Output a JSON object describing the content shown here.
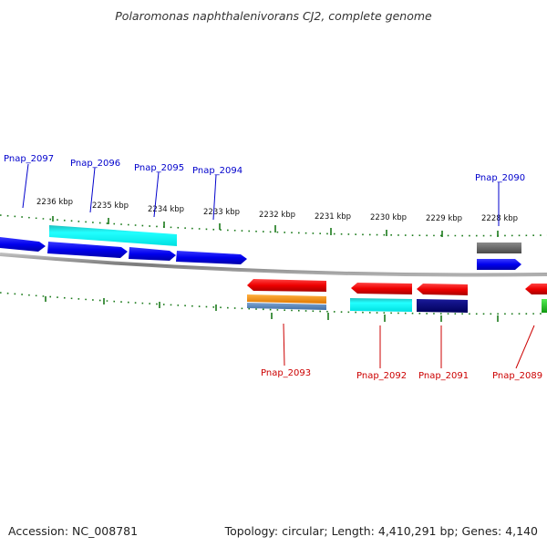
{
  "title": "Polaromonas naphthalenivorans CJ2, complete genome",
  "footer": {
    "accession": "Accession: NC_008781",
    "topology": "Topology: circular; Length: 4,410,291 bp; Genes: 4,140"
  },
  "colors": {
    "forward_label": "#0000cc",
    "reverse_label": "#cc0000",
    "tick": "#1a7a1a",
    "backbone": "#888888"
  },
  "scale_ticks": [
    "2236 kbp",
    "2235 kbp",
    "2234 kbp",
    "2233 kbp",
    "2232 kbp",
    "2231 kbp",
    "2230 kbp",
    "2229 kbp",
    "2228 kbp"
  ],
  "genes_forward": [
    "Pnap_2097",
    "Pnap_2096",
    "Pnap_2095",
    "Pnap_2094",
    "Pnap_2090"
  ],
  "genes_reverse": [
    "Pnap_2093",
    "Pnap_2092",
    "Pnap_2091",
    "Pnap_2089"
  ]
}
